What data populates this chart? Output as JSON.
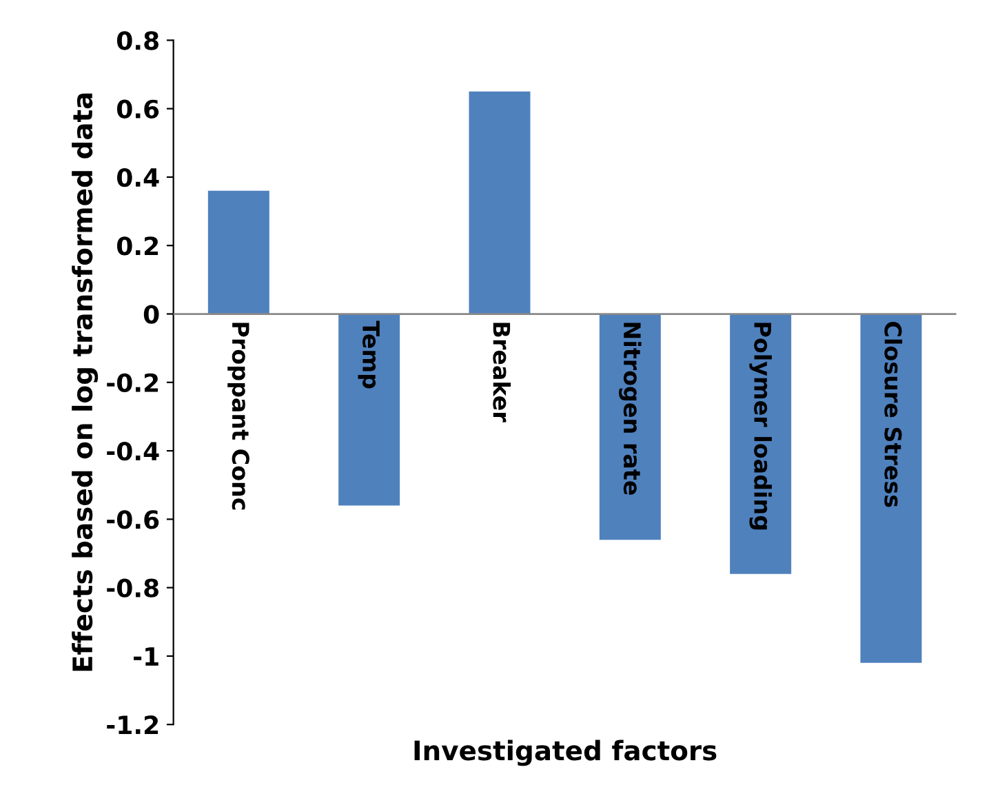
{
  "chart_data": {
    "type": "bar",
    "xlabel": "Investigated factors",
    "ylabel": "Effects based on log transformed data",
    "categories": [
      "Proppant Conc",
      "Temp",
      "Breaker",
      "Nitrogen rate",
      "Polymer loading",
      "Closure Stress"
    ],
    "values": [
      0.36,
      -0.56,
      0.65,
      -0.66,
      -0.76,
      -1.02
    ],
    "color": "#4f81bd",
    "ylim": [
      -1.2,
      0.8
    ],
    "yticks": [
      -1.2,
      -1,
      -0.8,
      -0.6,
      -0.4,
      -0.2,
      0,
      0.2,
      0.4,
      0.6,
      0.8
    ],
    "grid": false,
    "legend": false
  }
}
